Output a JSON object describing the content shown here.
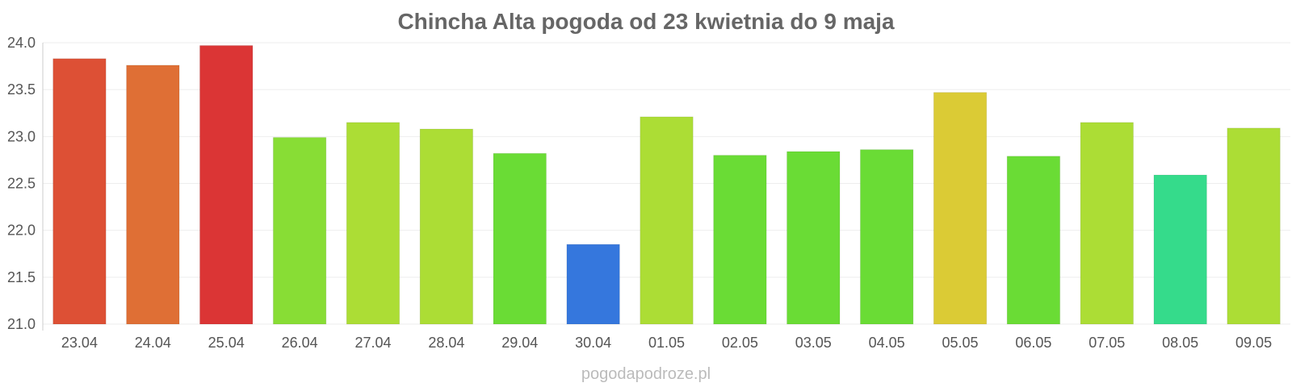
{
  "chart_data": {
    "type": "bar",
    "title": "Chincha Alta pogoda od 23 kwietnia do 9 maja",
    "xlabel": "",
    "ylabel": "",
    "ylim": [
      21.0,
      24.0
    ],
    "yticks": [
      "21.0",
      "21.5",
      "22.0",
      "22.5",
      "23.0",
      "23.5",
      "24.0"
    ],
    "grid": true,
    "categories": [
      "23.04",
      "24.04",
      "25.04",
      "26.04",
      "27.04",
      "28.04",
      "29.04",
      "30.04",
      "01.05",
      "02.05",
      "03.05",
      "04.05",
      "05.05",
      "06.05",
      "07.05",
      "08.05",
      "09.05"
    ],
    "values": [
      23.83,
      23.76,
      23.97,
      22.99,
      23.15,
      23.08,
      22.82,
      21.85,
      23.21,
      22.8,
      22.84,
      22.86,
      23.47,
      22.79,
      23.15,
      22.59,
      23.09
    ],
    "colors": [
      "#dd5035",
      "#df6f35",
      "#db3535",
      "#88dd35",
      "#acdd35",
      "#acdd35",
      "#6adc35",
      "#3577dd",
      "#acdd35",
      "#6adc35",
      "#6adc35",
      "#6adc35",
      "#dbcb35",
      "#6adc35",
      "#acdd35",
      "#35db8b",
      "#acdd35"
    ]
  },
  "watermark": "pogodapodroze.pl"
}
